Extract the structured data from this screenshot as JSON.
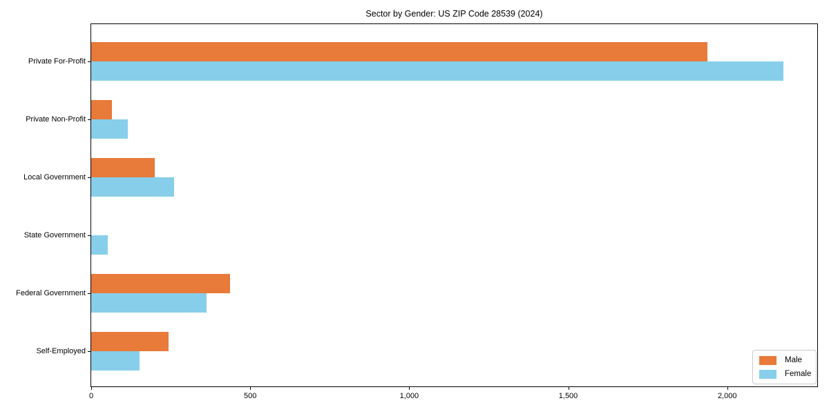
{
  "chart_data": {
    "type": "bar",
    "orientation": "horizontal",
    "title": "Sector by Gender: US ZIP Code 28539 (2024)",
    "categories": [
      "Private For-Profit",
      "Private Non-Profit",
      "Local Government",
      "State Government",
      "Federal Government",
      "Self-Employed"
    ],
    "series": [
      {
        "name": "Male",
        "color": "#E87A3A",
        "values": [
          1938,
          66,
          199,
          0,
          437,
          243
        ]
      },
      {
        "name": "Female",
        "color": "#87CEEB",
        "values": [
          2177,
          115,
          260,
          53,
          363,
          152
        ]
      }
    ],
    "xlim": [
      0,
      2283
    ],
    "xticks": [
      0,
      500,
      1000,
      1500,
      2000
    ],
    "xtick_labels": [
      "0",
      "500",
      "1,000",
      "1,500",
      "2,000"
    ],
    "grid": false,
    "legend": {
      "position": "lower right",
      "entries": [
        "Male",
        "Female"
      ]
    },
    "colors": {
      "axis": "#000000",
      "background": "#ffffff",
      "legend_border": "#c9c9c9"
    }
  }
}
